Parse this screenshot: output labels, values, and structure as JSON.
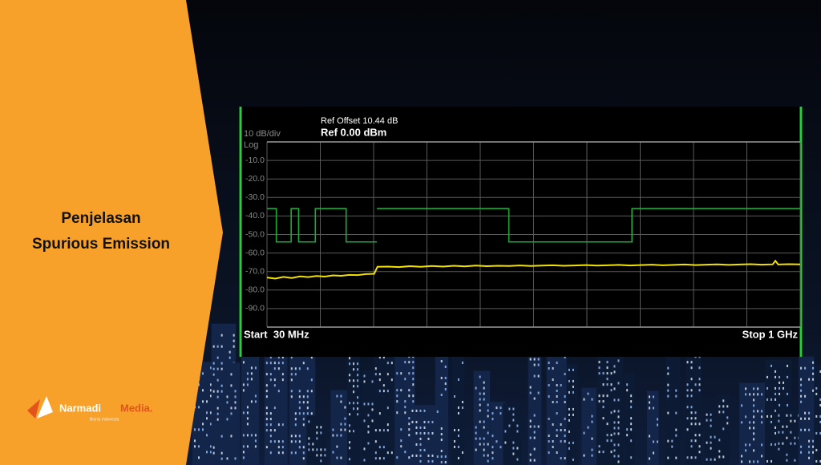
{
  "banner": {
    "title_lines": [
      "Penjelasan",
      "Spurious Emission"
    ]
  },
  "logo": {
    "name": "Narmadi",
    "accent": "Media.",
    "tagline": "Bisnis Indonesia"
  },
  "chart_data": {
    "type": "line",
    "ref_offset": "Ref Offset 10.44 dB",
    "ref_level": "Ref 0.00 dBm",
    "scale_label": "10 dB/div",
    "scale_type": "Log",
    "x_start_label": "Start  30 MHz",
    "x_stop_label": "Stop 1 GHz",
    "xlim": [
      30,
      1000
    ],
    "ylim": [
      -100,
      0
    ],
    "yticks": [
      {
        "value": -10,
        "label": "-10.0"
      },
      {
        "value": -20,
        "label": "-20.0"
      },
      {
        "value": -30,
        "label": "-30.0"
      },
      {
        "value": -40,
        "label": "-40.0"
      },
      {
        "value": -50,
        "label": "-50.0"
      },
      {
        "value": -60,
        "label": "-60.0"
      },
      {
        "value": -70,
        "label": "-70.0"
      },
      {
        "value": -80,
        "label": "-80.0"
      },
      {
        "value": -90,
        "label": "-90.0"
      }
    ],
    "grid": true,
    "series": [
      {
        "color": "#1fa83a",
        "x": [
          30,
          47,
          47,
          74,
          74,
          87.5,
          87.5,
          118,
          118,
          174,
          174,
          230,
          230,
          230,
          470,
          470,
          694,
          694,
          1000
        ],
        "values": [
          -36,
          -36,
          -54,
          -54,
          -36,
          -36,
          -54,
          -54,
          -36,
          -36,
          -54,
          -54,
          null,
          -36,
          -36,
          -54,
          -54,
          -36,
          -36
        ]
      },
      {
        "color": "#f2e000",
        "x": [
          30,
          45,
          60,
          75,
          90,
          105,
          120,
          135,
          150,
          165,
          180,
          195,
          210,
          225,
          231,
          250,
          270,
          290,
          310,
          330,
          350,
          370,
          390,
          410,
          430,
          450,
          470,
          490,
          510,
          530,
          550,
          570,
          590,
          610,
          630,
          650,
          670,
          690,
          710,
          730,
          750,
          770,
          790,
          810,
          830,
          850,
          870,
          890,
          910,
          930,
          950,
          955,
          960,
          980,
          1000
        ],
        "values": [
          -73.2,
          -73.8,
          -72.9,
          -73.5,
          -72.6,
          -73.0,
          -72.4,
          -72.7,
          -72.1,
          -72.3,
          -71.8,
          -71.9,
          -71.4,
          -71.2,
          -67.4,
          -67.3,
          -67.6,
          -67.1,
          -67.4,
          -67.0,
          -67.3,
          -66.9,
          -67.2,
          -66.8,
          -67.1,
          -66.9,
          -67.0,
          -66.7,
          -67.0,
          -66.8,
          -66.6,
          -66.9,
          -66.7,
          -66.5,
          -66.8,
          -66.6,
          -66.4,
          -66.7,
          -66.5,
          -66.3,
          -66.6,
          -66.4,
          -66.2,
          -66.5,
          -66.3,
          -66.1,
          -66.4,
          -66.2,
          -66.0,
          -66.3,
          -66.1,
          -64.2,
          -66.2,
          -66.0,
          -66.1
        ]
      }
    ]
  }
}
